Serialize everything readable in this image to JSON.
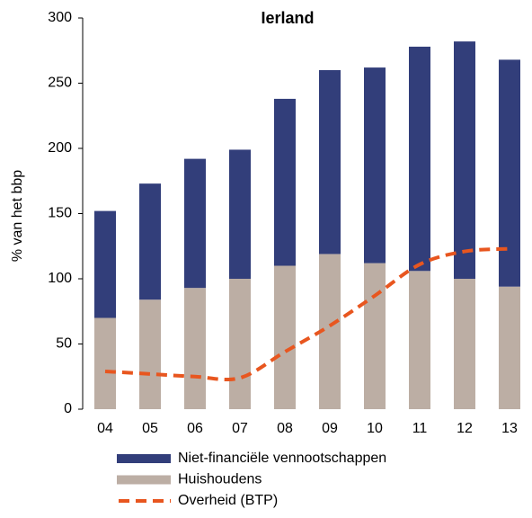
{
  "chart_data": {
    "type": "stacked_bar_line",
    "title": "Ierland",
    "y_label": "% van het bbp",
    "categories": [
      "04",
      "05",
      "06",
      "07",
      "08",
      "09",
      "10",
      "11",
      "12",
      "13"
    ],
    "series": [
      {
        "name": "Niet-financiële vennootschappen",
        "color": "#323e7a",
        "kind": "bar",
        "values": [
          82,
          89,
          99,
          99,
          128,
          141,
          150,
          172,
          182,
          174
        ]
      },
      {
        "name": "Huishoudens",
        "color": "#bcaea4",
        "kind": "bar",
        "values": [
          70,
          84,
          93,
          100,
          110,
          119,
          112,
          106,
          100,
          94
        ]
      },
      {
        "name": "Overheid (BTP)",
        "color": "#e8561f",
        "kind": "line",
        "values": [
          29,
          27,
          25,
          24,
          44,
          64,
          87,
          111,
          121,
          123
        ]
      }
    ],
    "ylim": [
      0,
      300
    ],
    "yticks": [
      0,
      50,
      100,
      150,
      200,
      250,
      300
    ]
  }
}
